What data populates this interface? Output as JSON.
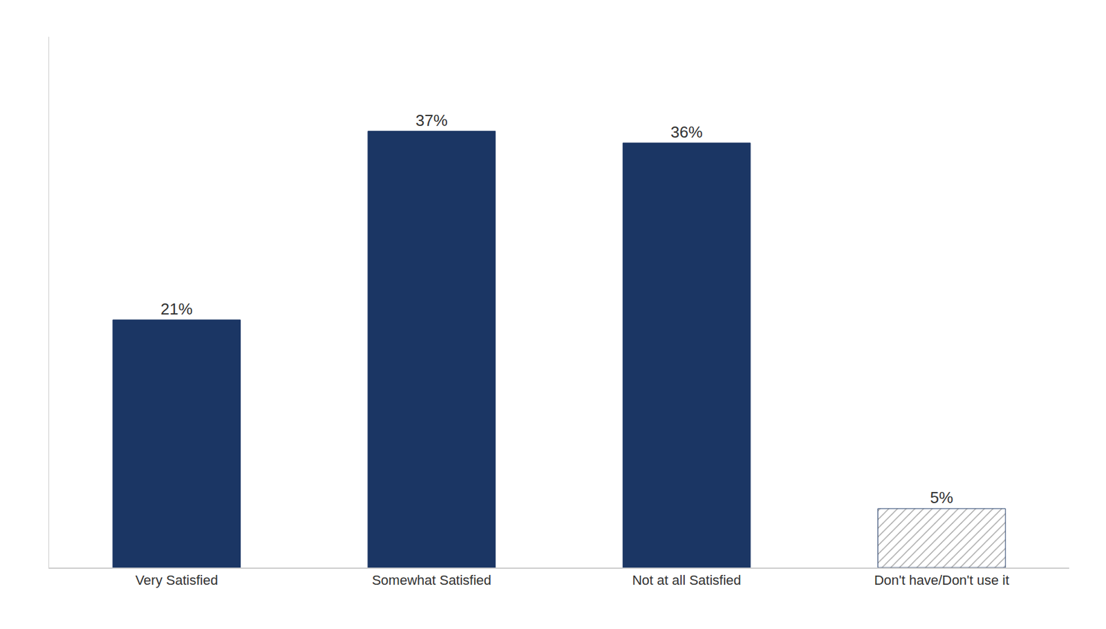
{
  "chart_data": {
    "type": "bar",
    "categories": [
      "Very Satisfied",
      "Somewhat Satisfied",
      "Not at all Satisfied",
      "Don't have/Don't use it"
    ],
    "values": [
      21,
      37,
      36,
      5
    ],
    "value_labels": [
      "21%",
      "37%",
      "36%",
      "5%"
    ],
    "color": "#1B3664",
    "ylim": [
      0,
      45
    ],
    "grid": false,
    "data_labels": true,
    "tick_labels": "x"
  }
}
